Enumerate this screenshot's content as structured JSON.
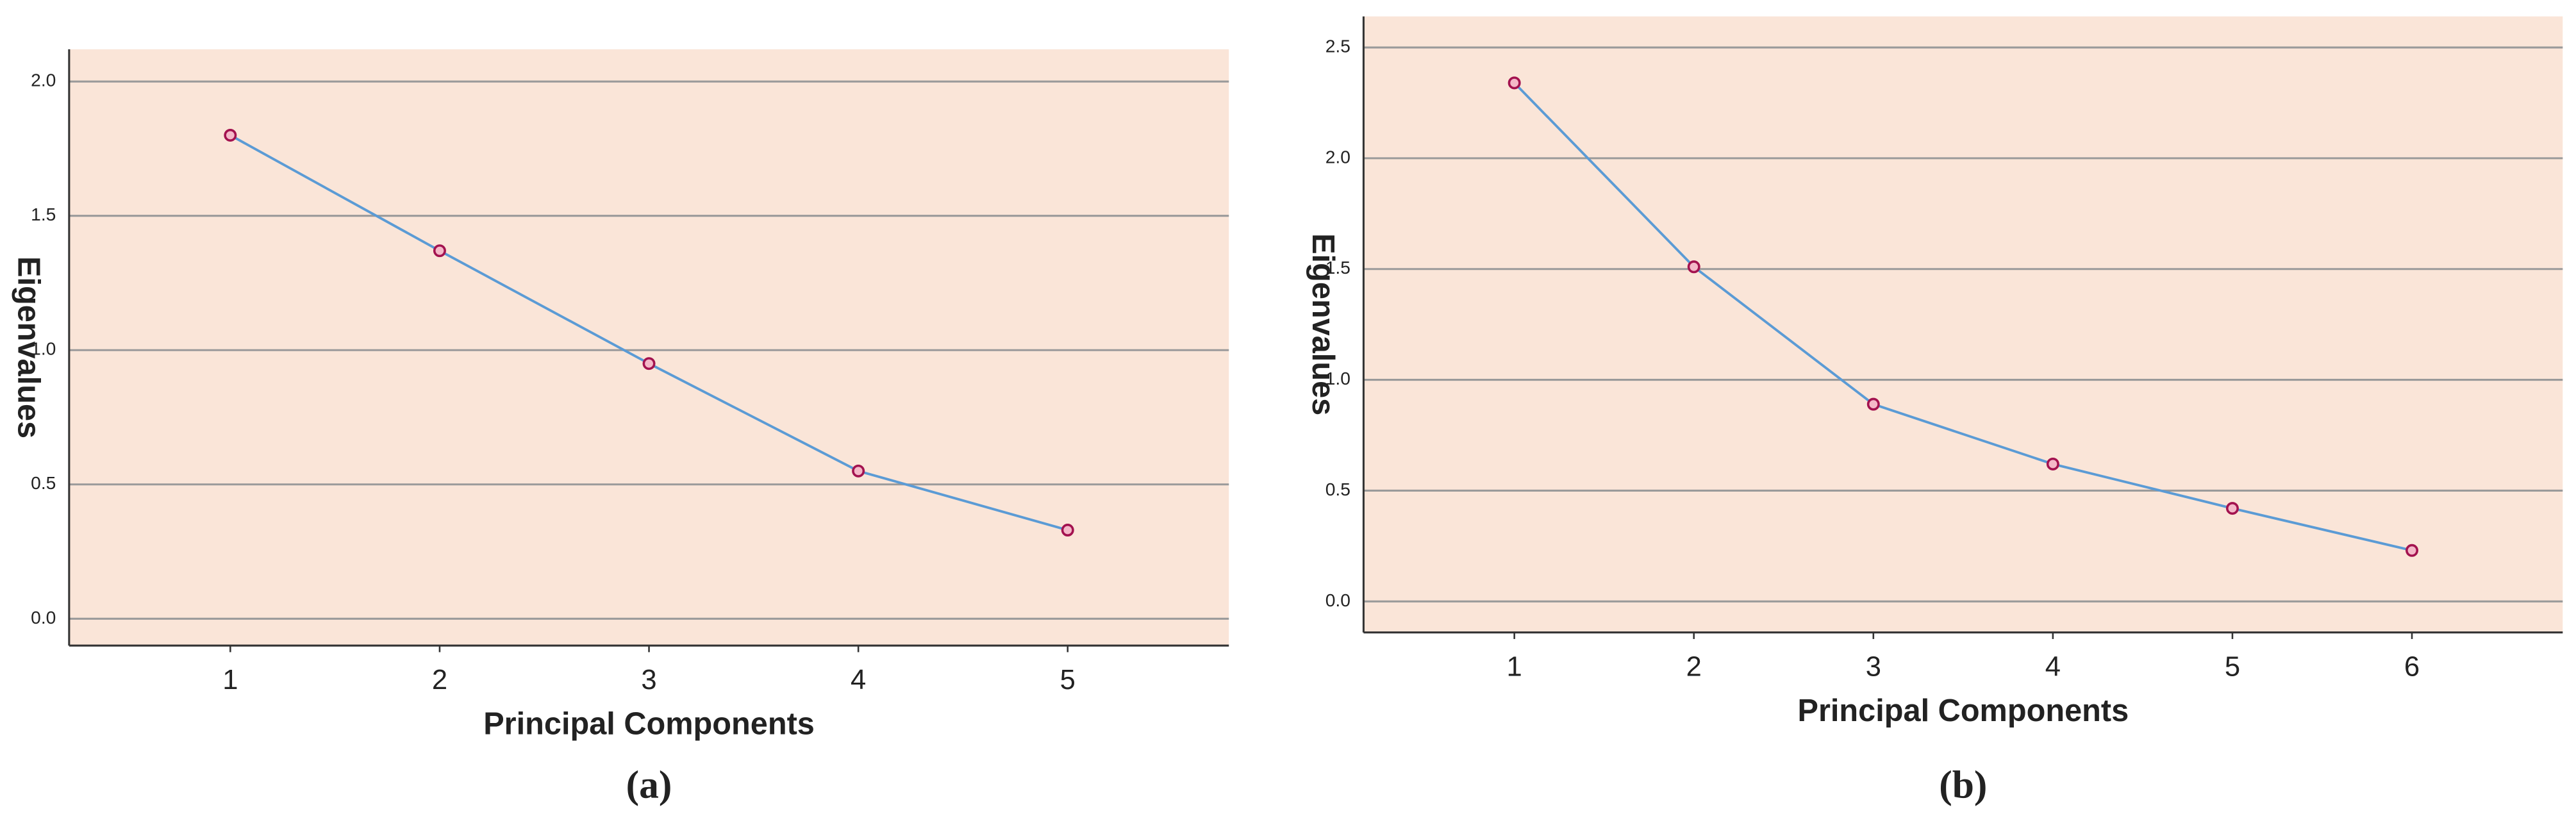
{
  "chart_data": [
    {
      "type": "line",
      "caption": "(a)",
      "x_label": "Principal Components",
      "y_label": "Eigenvalues",
      "x": [
        1,
        2,
        3,
        4,
        5
      ],
      "xlim": [
        0.23,
        5.77
      ],
      "xticks": [
        1,
        2,
        3,
        4,
        5
      ],
      "series": [
        {
          "color": "#5b9bd5",
          "values": [
            1.8,
            1.37,
            0.95,
            0.55,
            0.33
          ]
        }
      ],
      "ylim": [
        -0.1,
        2.12
      ],
      "yticks": [
        {
          "value": 0,
          "label": "0.0"
        },
        0.5,
        {
          "value": 1,
          "label": "1.0"
        },
        1.5,
        {
          "value": 2,
          "label": "2.0"
        }
      ],
      "grid": true
    },
    {
      "type": "line",
      "caption": "(b)",
      "x_label": "Principal Components",
      "y_label": "Eigenvalues",
      "x": [
        1,
        2,
        3,
        4,
        5,
        6
      ],
      "xlim": [
        0.16,
        6.84
      ],
      "xticks": [
        1,
        2,
        3,
        4,
        5,
        6
      ],
      "series": [
        {
          "color": "#5b9bd5",
          "values": [
            2.34,
            1.51,
            0.89,
            0.62,
            0.42,
            0.23
          ]
        }
      ],
      "ylim": [
        -0.14,
        2.64
      ],
      "yticks": [
        {
          "value": 0,
          "label": "0.0"
        },
        0.5,
        {
          "value": 1,
          "label": "1.0"
        },
        1.5,
        {
          "value": 2,
          "label": "2.0"
        },
        2.5
      ],
      "grid": true
    }
  ]
}
